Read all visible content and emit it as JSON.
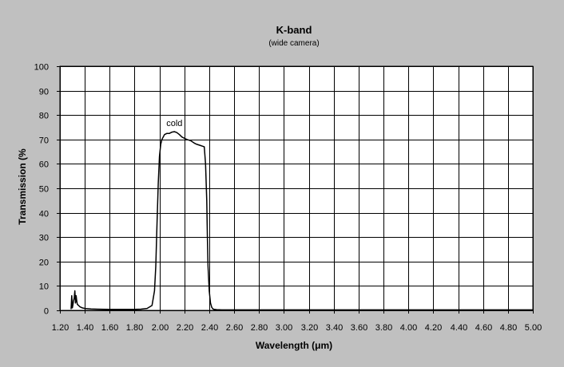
{
  "chart_data": {
    "type": "line",
    "title": "K-band",
    "subtitle": "(wide camera)",
    "xlabel": "Wavelength (μm)",
    "ylabel": "Transmission (%",
    "xlim": [
      1.2,
      5.0
    ],
    "ylim": [
      0,
      100
    ],
    "x_ticks": [
      "1.20",
      "1.40",
      "1.60",
      "1.80",
      "2.00",
      "2.20",
      "2.40",
      "2.60",
      "2.80",
      "3.00",
      "3.20",
      "3.40",
      "3.60",
      "3.80",
      "4.00",
      "4.20",
      "4.40",
      "4.60",
      "4.80",
      "5.00"
    ],
    "y_ticks": [
      "0",
      "10",
      "20",
      "30",
      "40",
      "50",
      "60",
      "70",
      "80",
      "90",
      "100"
    ],
    "grid": true,
    "colors": {
      "background": "#c0c0c0",
      "plot_area": "#ffffff",
      "grid": "#000000",
      "line": "#000000"
    },
    "annotations": [
      {
        "text": "cold",
        "x": 2.12,
        "y": 75.5
      }
    ],
    "series": [
      {
        "x": [
          1.29,
          1.295,
          1.3,
          1.305,
          1.31,
          1.315,
          1.32,
          1.325,
          1.33,
          1.335,
          1.34,
          1.35,
          1.36,
          1.38,
          1.4,
          1.45,
          1.5,
          1.6,
          1.7,
          1.8,
          1.85,
          1.9,
          1.94,
          1.96,
          1.97,
          1.98,
          1.99,
          2.0,
          2.01,
          2.02,
          2.04,
          2.06,
          2.08,
          2.1,
          2.12,
          2.14,
          2.16,
          2.18,
          2.2,
          2.22,
          2.25,
          2.28,
          2.3,
          2.33,
          2.36,
          2.37,
          2.38,
          2.385,
          2.39,
          2.4,
          2.41,
          2.42,
          2.43,
          2.44,
          2.46,
          2.5,
          2.6,
          2.8,
          3.0,
          3.2,
          3.4,
          3.6,
          3.8,
          4.0,
          4.2,
          4.4,
          4.6,
          4.8,
          5.0
        ],
        "y": [
          0.5,
          6,
          1,
          2.5,
          4,
          5,
          8,
          3,
          6,
          4,
          2.5,
          2,
          1.5,
          1,
          0.8,
          0.6,
          0.5,
          0.4,
          0.4,
          0.4,
          0.5,
          0.8,
          2,
          8,
          18,
          35,
          52,
          63,
          68,
          70,
          72,
          72.5,
          72.5,
          73,
          73.2,
          72.8,
          72,
          71,
          70.5,
          70,
          69.5,
          68.5,
          68,
          67.5,
          67,
          60,
          45,
          30,
          18,
          8,
          3,
          1.2,
          0.6,
          0.4,
          0.3,
          0.2,
          0.2,
          0.2,
          0.2,
          0.2,
          0.2,
          0.2,
          0.2,
          0.2,
          0.2,
          0.2,
          0.2,
          0.2,
          0.2
        ]
      }
    ]
  }
}
